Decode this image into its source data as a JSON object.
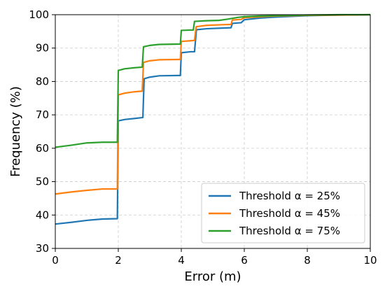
{
  "chart_data": {
    "type": "line",
    "title": "",
    "xlabel": "Error (m)",
    "ylabel": "Frequency (%)",
    "xlim": [
      0,
      10
    ],
    "ylim": [
      30,
      100
    ],
    "xticks": [
      0,
      2,
      4,
      6,
      8,
      10
    ],
    "yticks": [
      30,
      40,
      50,
      60,
      70,
      80,
      90,
      100
    ],
    "grid": true,
    "legend_position": "bottom-right",
    "series": [
      {
        "name": "Threshold α = 25%",
        "color": "#1f77b4",
        "points": [
          [
            0,
            37.3
          ],
          [
            0.5,
            37.8
          ],
          [
            1.0,
            38.4
          ],
          [
            1.5,
            38.8
          ],
          [
            1.97,
            38.9
          ],
          [
            2.0,
            68.2
          ],
          [
            2.2,
            68.6
          ],
          [
            2.5,
            68.9
          ],
          [
            2.78,
            69.2
          ],
          [
            2.82,
            80.8
          ],
          [
            3.0,
            81.3
          ],
          [
            3.3,
            81.7
          ],
          [
            3.97,
            81.8
          ],
          [
            4.0,
            88.6
          ],
          [
            4.3,
            88.9
          ],
          [
            4.42,
            88.9
          ],
          [
            4.48,
            95.5
          ],
          [
            4.8,
            95.8
          ],
          [
            5.3,
            96.0
          ],
          [
            5.58,
            96.1
          ],
          [
            5.62,
            97.4
          ],
          [
            5.9,
            97.6
          ],
          [
            6.0,
            98.5
          ],
          [
            6.3,
            98.8
          ],
          [
            6.5,
            99.0
          ],
          [
            7.0,
            99.3
          ],
          [
            7.5,
            99.5
          ],
          [
            8.0,
            99.7
          ],
          [
            9.0,
            99.9
          ],
          [
            10.0,
            100.0
          ]
        ]
      },
      {
        "name": "Threshold α = 45%",
        "color": "#ff7f0e",
        "points": [
          [
            0,
            46.3
          ],
          [
            0.5,
            46.9
          ],
          [
            1.0,
            47.4
          ],
          [
            1.5,
            47.8
          ],
          [
            1.97,
            47.8
          ],
          [
            2.0,
            76.0
          ],
          [
            2.2,
            76.5
          ],
          [
            2.5,
            76.9
          ],
          [
            2.76,
            77.1
          ],
          [
            2.8,
            85.7
          ],
          [
            3.0,
            86.2
          ],
          [
            3.3,
            86.5
          ],
          [
            3.97,
            86.6
          ],
          [
            4.0,
            92.0
          ],
          [
            4.3,
            92.2
          ],
          [
            4.42,
            92.3
          ],
          [
            4.47,
            96.4
          ],
          [
            4.8,
            96.8
          ],
          [
            5.3,
            97.0
          ],
          [
            5.58,
            97.1
          ],
          [
            5.62,
            98.4
          ],
          [
            5.9,
            98.6
          ],
          [
            6.0,
            99.1
          ],
          [
            6.5,
            99.4
          ],
          [
            7.0,
            99.6
          ],
          [
            8.0,
            99.8
          ],
          [
            9.0,
            99.9
          ],
          [
            10.0,
            100.0
          ]
        ]
      },
      {
        "name": "Threshold α = 75%",
        "color": "#2ca02c",
        "points": [
          [
            0,
            60.3
          ],
          [
            0.5,
            60.9
          ],
          [
            1.0,
            61.6
          ],
          [
            1.5,
            61.8
          ],
          [
            1.97,
            61.8
          ],
          [
            2.0,
            83.3
          ],
          [
            2.2,
            83.8
          ],
          [
            2.5,
            84.1
          ],
          [
            2.76,
            84.3
          ],
          [
            2.8,
            90.4
          ],
          [
            3.0,
            90.8
          ],
          [
            3.3,
            91.1
          ],
          [
            3.97,
            91.2
          ],
          [
            4.0,
            95.3
          ],
          [
            4.3,
            95.4
          ],
          [
            4.38,
            95.4
          ],
          [
            4.42,
            98.0
          ],
          [
            4.8,
            98.2
          ],
          [
            5.2,
            98.3
          ],
          [
            5.5,
            98.7
          ],
          [
            5.8,
            99.2
          ],
          [
            6.0,
            99.4
          ],
          [
            6.5,
            99.6
          ],
          [
            7.0,
            99.7
          ],
          [
            8.0,
            99.9
          ],
          [
            9.0,
            100.0
          ],
          [
            10.0,
            100.0
          ]
        ]
      }
    ]
  }
}
